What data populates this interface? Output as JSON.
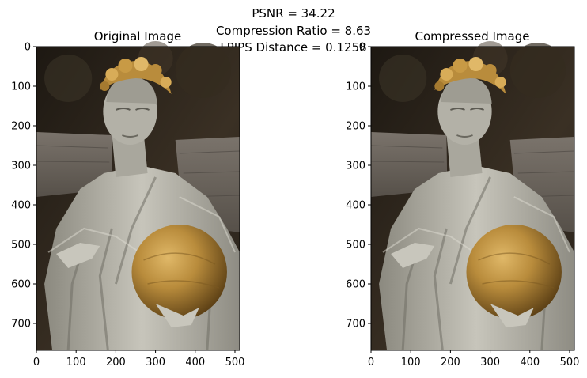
{
  "suptitle": {
    "lines": [
      "PSNR = 34.22",
      "Compression Ratio = 8.63",
      "LPIPS Distance = 0.1258"
    ]
  },
  "chart_data": [
    {
      "type": "image",
      "title": "Original Image",
      "xlim": [
        0,
        512
      ],
      "ylim": [
        768,
        0
      ],
      "xticks": [
        0,
        100,
        200,
        300,
        400,
        500
      ],
      "yticks": [
        0,
        100,
        200,
        300,
        400,
        500,
        600,
        700
      ]
    },
    {
      "type": "image",
      "title": "Compressed Image",
      "xlim": [
        0,
        512
      ],
      "ylim": [
        768,
        0
      ],
      "xticks": [
        0,
        100,
        200,
        300,
        400,
        500
      ],
      "yticks": [
        0,
        100,
        200,
        300,
        400,
        500,
        600,
        700
      ]
    }
  ],
  "colors": {
    "background": "#2a231a",
    "stone_wall": "#6c6660",
    "marble": "#b9b7ad",
    "marble_shadow": "#7f7d74",
    "gold": "#b98c3c",
    "gold_dark": "#6f4f1d"
  }
}
